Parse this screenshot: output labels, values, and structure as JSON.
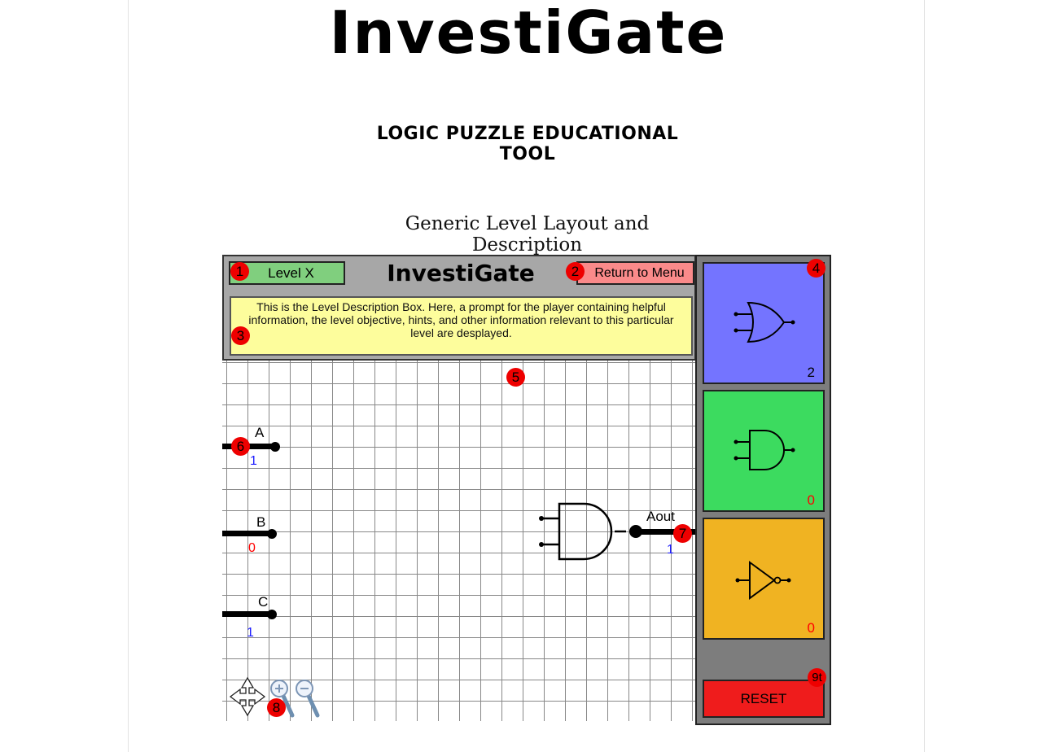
{
  "site": {
    "logo": "InvestiGate",
    "subtitle": "LOGIC PUZZLE EDUCATIONAL TOOL",
    "heading": "Generic Level Layout and Description"
  },
  "game": {
    "level_label": "Level X",
    "mini_logo": "InvestiGate",
    "menu_label": "Return to Menu",
    "description": "This is the Level Description Box. Here, a prompt for the player containing helpful information, the level objective, hints, and other information relevant to this particular level are desplayed.",
    "inputs": [
      {
        "name": "A",
        "value": "1",
        "color": "#1a1aff"
      },
      {
        "name": "B",
        "value": "0",
        "color": "#ff0000"
      },
      {
        "name": "C",
        "value": "1",
        "color": "#1a1aff"
      }
    ],
    "output": {
      "name": "Aout",
      "value": "1",
      "color": "#1a1aff"
    },
    "gates": [
      {
        "type": "OR",
        "count": "2",
        "color": "#7474ff",
        "count_color": "#000000"
      },
      {
        "type": "AND",
        "count": "0",
        "color": "#3cdb5f",
        "count_color": "#ff0000"
      },
      {
        "type": "NOT",
        "count": "0",
        "color": "#f0b322",
        "count_color": "#ff0000"
      }
    ],
    "reset_label": "RESET",
    "markers": [
      "1",
      "2",
      "3",
      "4",
      "5",
      "6",
      "7",
      "8",
      "9t"
    ]
  },
  "icons": [
    "pan-arrows-icon",
    "zoom-in-icon",
    "zoom-out-icon",
    "or-gate-icon",
    "and-gate-icon",
    "not-gate-icon"
  ]
}
